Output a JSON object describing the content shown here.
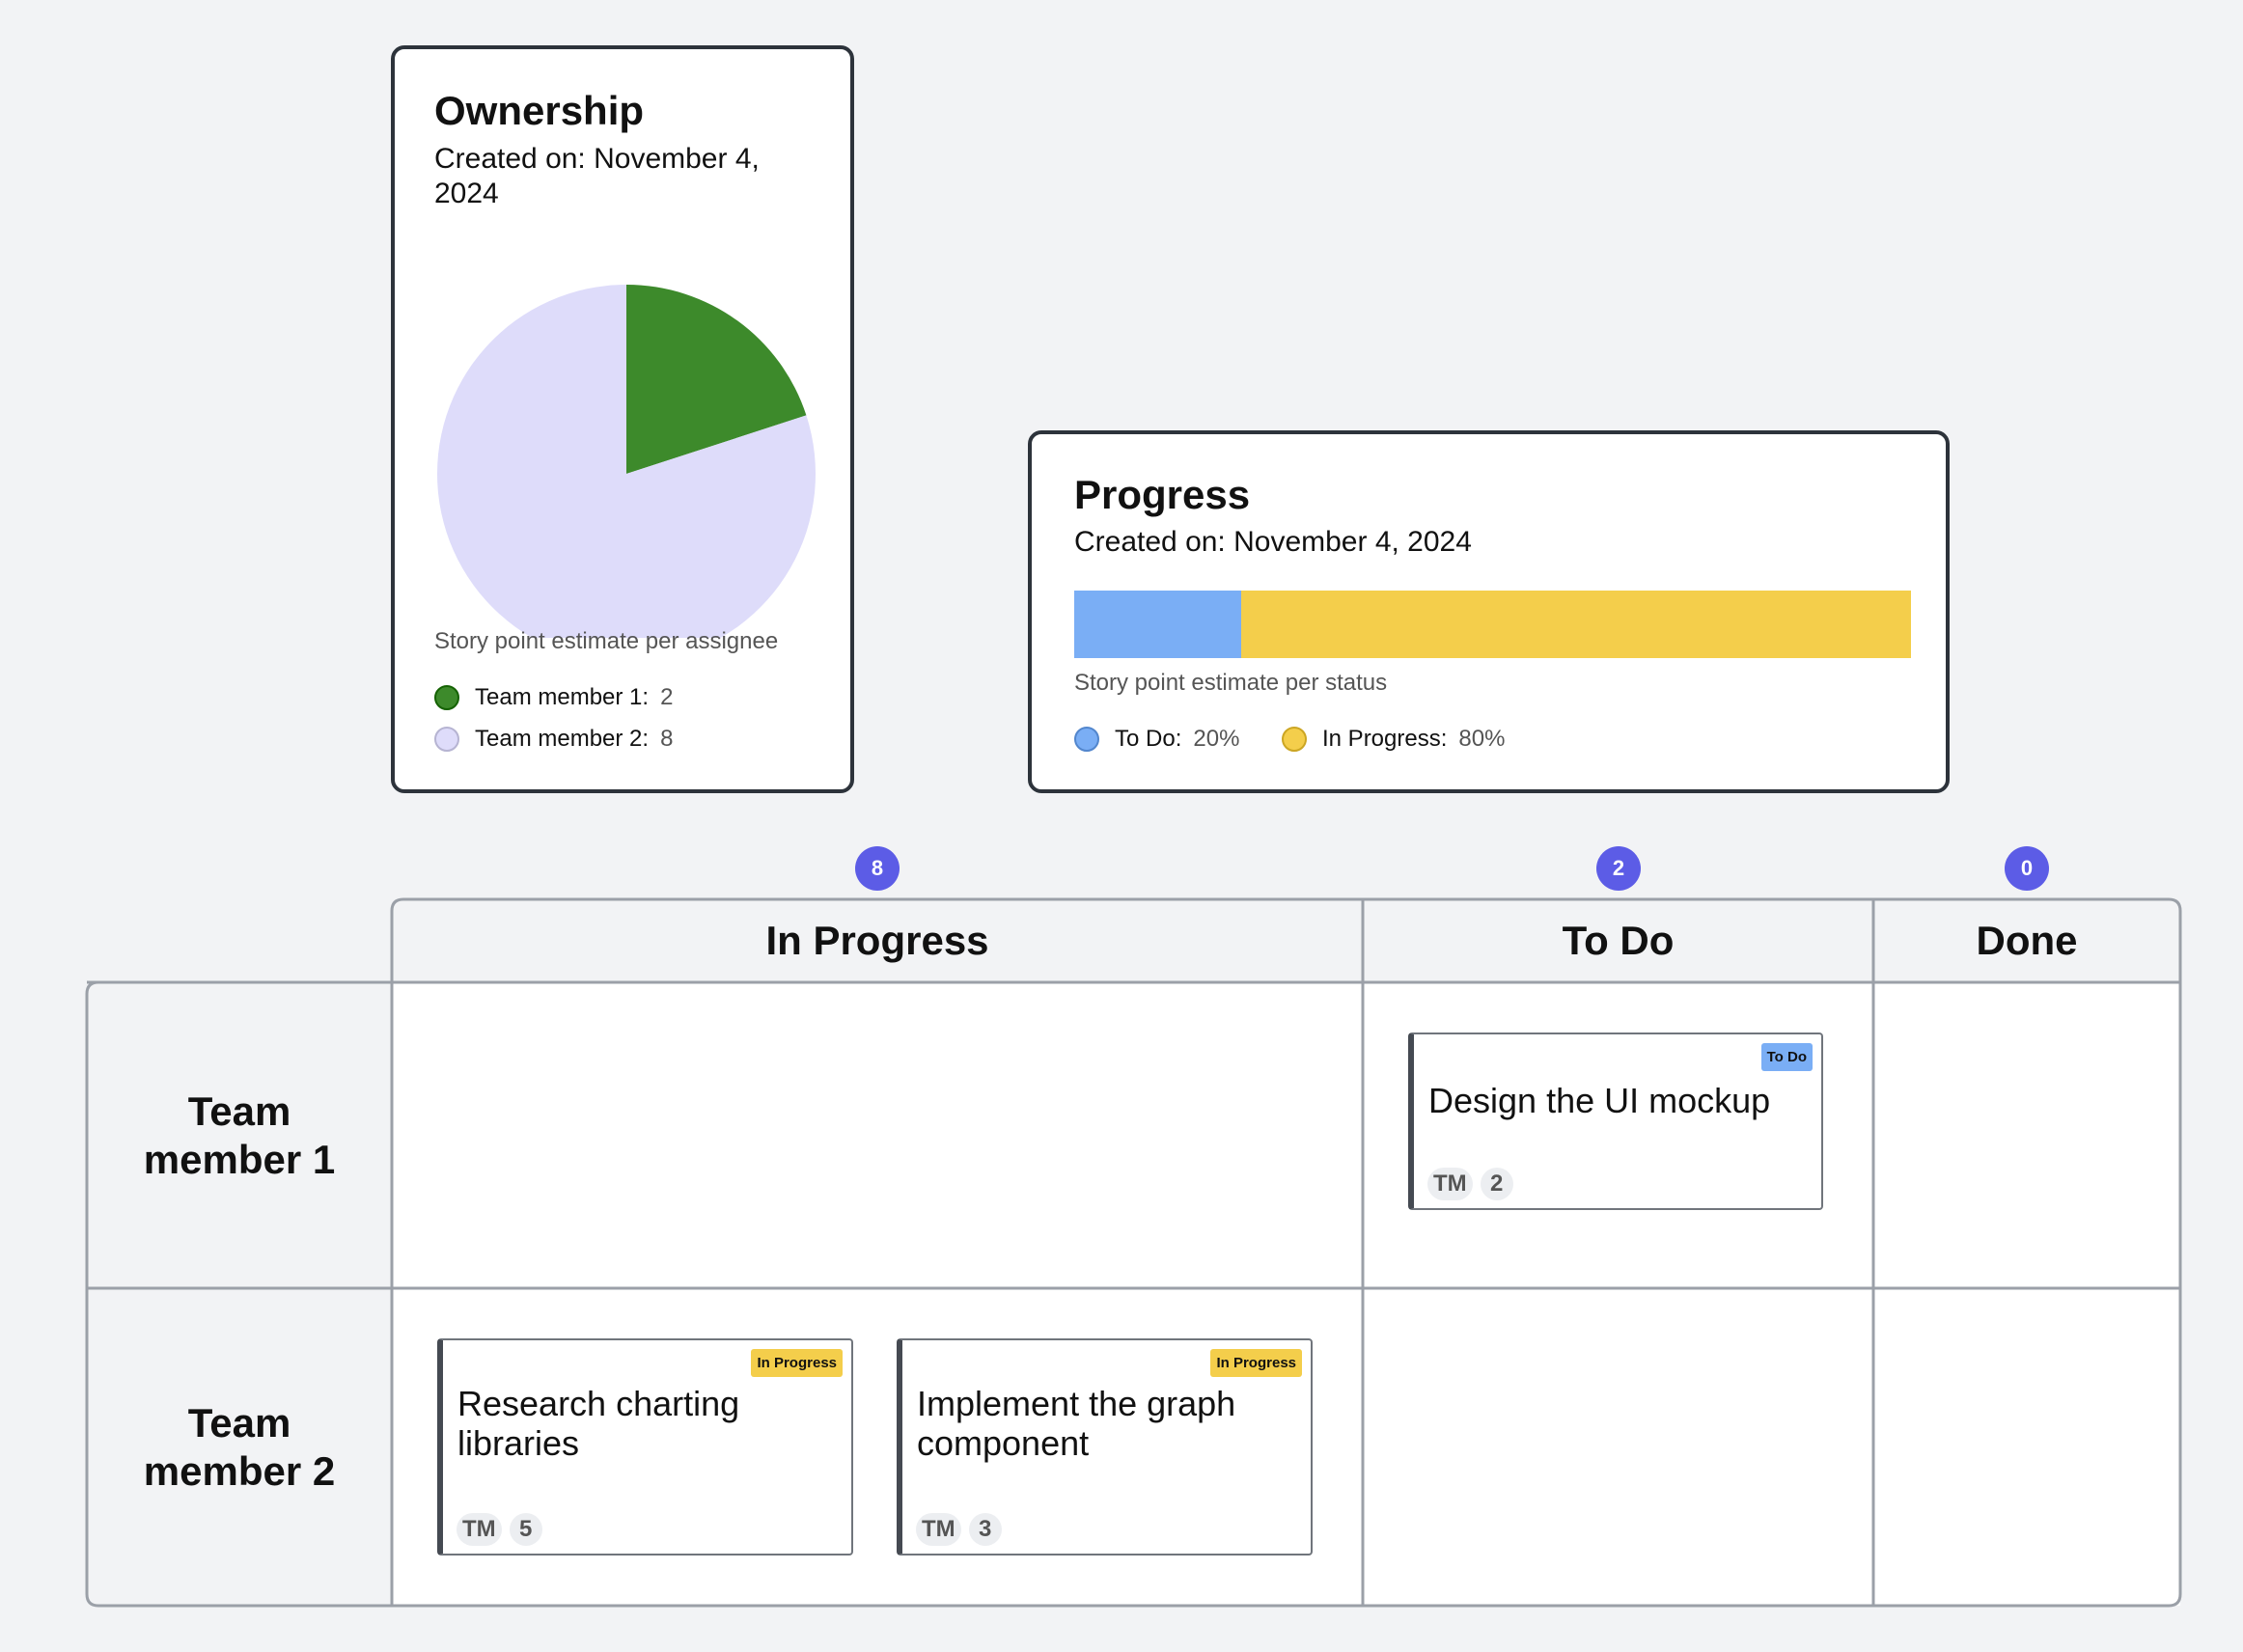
{
  "ownership": {
    "title": "Ownership",
    "created": "Created on: November 4, 2024",
    "caption": "Story point estimate per assignee",
    "legend": [
      {
        "label": "Team member 1:",
        "value": "2",
        "color": "#3d8a2b"
      },
      {
        "label": "Team member 2:",
        "value": "8",
        "color": "#dedcfa"
      }
    ]
  },
  "progress": {
    "title": "Progress",
    "created": "Created on: November 4, 2024",
    "caption": "Story point estimate per status",
    "legend": [
      {
        "label": "To Do:",
        "value": "20%",
        "color": "#7aaef5"
      },
      {
        "label": "In Progress:",
        "value": "80%",
        "color": "#f4ce4b"
      }
    ]
  },
  "chart_data": [
    {
      "type": "pie",
      "title": "Ownership",
      "categories": [
        "Team member 1",
        "Team member 2"
      ],
      "values": [
        2,
        8
      ],
      "colors": [
        "#3d8a2b",
        "#dedcfa"
      ]
    },
    {
      "type": "bar",
      "orientation": "stacked-horizontal",
      "title": "Progress",
      "categories": [
        "To Do",
        "In Progress"
      ],
      "values": [
        20,
        80
      ],
      "colors": [
        "#7aaef5",
        "#f4ce4b"
      ]
    }
  ],
  "board": {
    "columns": [
      {
        "label": "In Progress",
        "count": "8"
      },
      {
        "label": "To Do",
        "count": "2"
      },
      {
        "label": "Done",
        "count": "0"
      }
    ],
    "rows": [
      {
        "label": "Team member 1"
      },
      {
        "label": "Team member 2"
      }
    ],
    "tasks": [
      {
        "title": "Design the UI mockup",
        "status": "To Do",
        "avatar": "TM",
        "points": "2"
      },
      {
        "title": "Research charting libraries",
        "status": "In Progress",
        "avatar": "TM",
        "points": "5"
      },
      {
        "title": "Implement the graph component",
        "status": "In Progress",
        "avatar": "TM",
        "points": "3"
      }
    ]
  }
}
